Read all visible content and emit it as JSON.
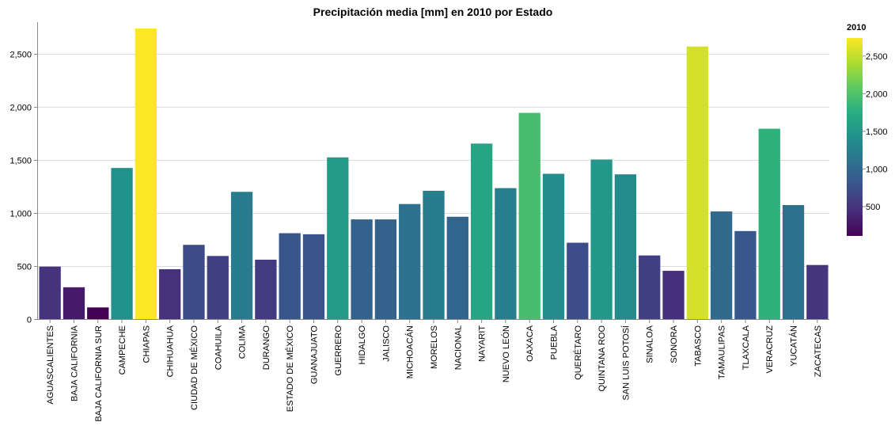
{
  "chart_data": {
    "type": "bar",
    "title": "Precipitación media [mm] en 2010 por Estado",
    "xlabel": "",
    "ylabel": "",
    "ylim": [
      0,
      2800
    ],
    "yticks": [
      0,
      500,
      1000,
      1500,
      2000,
      2500
    ],
    "ytick_labels": [
      "0",
      "500",
      "1,000",
      "1,500",
      "2,000",
      "2,500"
    ],
    "grid": true,
    "legend": {
      "title": "2010",
      "placement": "right",
      "range": [
        110,
        2740
      ],
      "ticks": [
        500,
        1000,
        1500,
        2000,
        2500
      ],
      "tick_labels": [
        "500",
        "1,000",
        "1,500",
        "2,000",
        "2,500"
      ]
    },
    "categories": [
      "AGUASCALIENTES",
      "BAJA CALIFORNIA",
      "BAJA CALIFORNIA SUR",
      "CAMPECHE",
      "CHIAPAS",
      "CHIHUAHUA",
      "CIUDAD DE MÉXICO",
      "COAHUILA",
      "COLIMA",
      "DURANGO",
      "ESTADO DE MÉXICO",
      "GUANAJUATO",
      "GUERRERO",
      "HIDALGO",
      "JALISCO",
      "MICHOACÁN",
      "MORELOS",
      "NACIONAL",
      "NAYARIT",
      "NUEVO LEÓN",
      "OAXACA",
      "PUEBLA",
      "QUERÉTARO",
      "QUINTANA ROO",
      "SAN LUIS POTOSÍ",
      "SINALOA",
      "SONORA",
      "TABASCO",
      "TAMAULIPAS",
      "TLAXCALA",
      "VERACRUZ",
      "YUCATÁN",
      "ZACATECAS"
    ],
    "values": [
      495,
      300,
      110,
      1425,
      2740,
      470,
      700,
      595,
      1200,
      560,
      810,
      800,
      1525,
      940,
      940,
      1085,
      1210,
      965,
      1655,
      1235,
      1945,
      1370,
      720,
      1505,
      1365,
      600,
      455,
      2570,
      1015,
      830,
      1795,
      1075,
      510
    ],
    "colorscale": "viridis"
  }
}
